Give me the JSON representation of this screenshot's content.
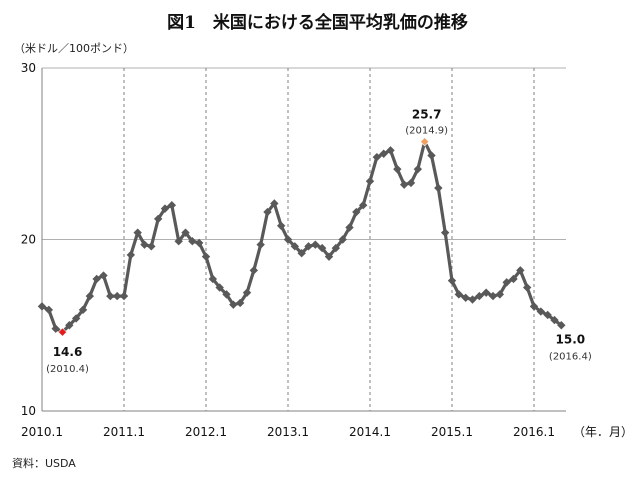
{
  "title": "図1　米国における全国平均乳価の推移",
  "unit_label": "（米ドル／100ポンド）",
  "source": "資料：USDA",
  "chart_data": {
    "type": "line",
    "title": "図1　米国における全国平均乳価の推移",
    "ylabel": "（米ドル／100ポンド）",
    "xlabel": "（年．月）",
    "ylim": [
      10,
      30
    ],
    "yticks": [
      10,
      20,
      30
    ],
    "xticks": [
      "2010.1",
      "2011.1",
      "2012.1",
      "2013.1",
      "2014.1",
      "2015.1",
      "2016.1"
    ],
    "grid": "horizontal lines at y ticks; dashed vertical lines at each January",
    "line_color": "#595959",
    "highlight_low_color": "#e31b1b",
    "highlight_high_color": "#f0a060",
    "series": [
      {
        "values": [
          16.1,
          15.9,
          14.8,
          14.6,
          15.0,
          15.4,
          15.9,
          16.7,
          17.7,
          17.9,
          16.7,
          16.7,
          16.7,
          19.1,
          20.4,
          19.7,
          19.6,
          21.2,
          21.8,
          22.0,
          19.9,
          20.4,
          19.9,
          19.8,
          19.0,
          17.7,
          17.2,
          16.8,
          16.2,
          16.3,
          16.9,
          18.2,
          19.7,
          21.6,
          22.1,
          20.8,
          20.0,
          19.6,
          19.2,
          19.6,
          19.7,
          19.5,
          19.0,
          19.5,
          20.0,
          20.7,
          21.6,
          22.0,
          23.4,
          24.8,
          25.0,
          25.2,
          24.1,
          23.2,
          23.3,
          24.1,
          25.7,
          24.9,
          23.0,
          20.4,
          17.6,
          16.8,
          16.6,
          16.5,
          16.7,
          16.9,
          16.7,
          16.8,
          17.5,
          17.7,
          18.2,
          17.2,
          16.1,
          15.8,
          15.6,
          15.3,
          15.0
        ]
      }
    ],
    "start": "2010.1",
    "annotations": [
      {
        "value_label": "14.6",
        "date_label": "(2010.4)",
        "kind": "low"
      },
      {
        "value_label": "25.7",
        "date_label": "(2014.9)",
        "kind": "high"
      },
      {
        "value_label": "15.0",
        "date_label": "(2016.4)",
        "kind": "last"
      }
    ]
  }
}
